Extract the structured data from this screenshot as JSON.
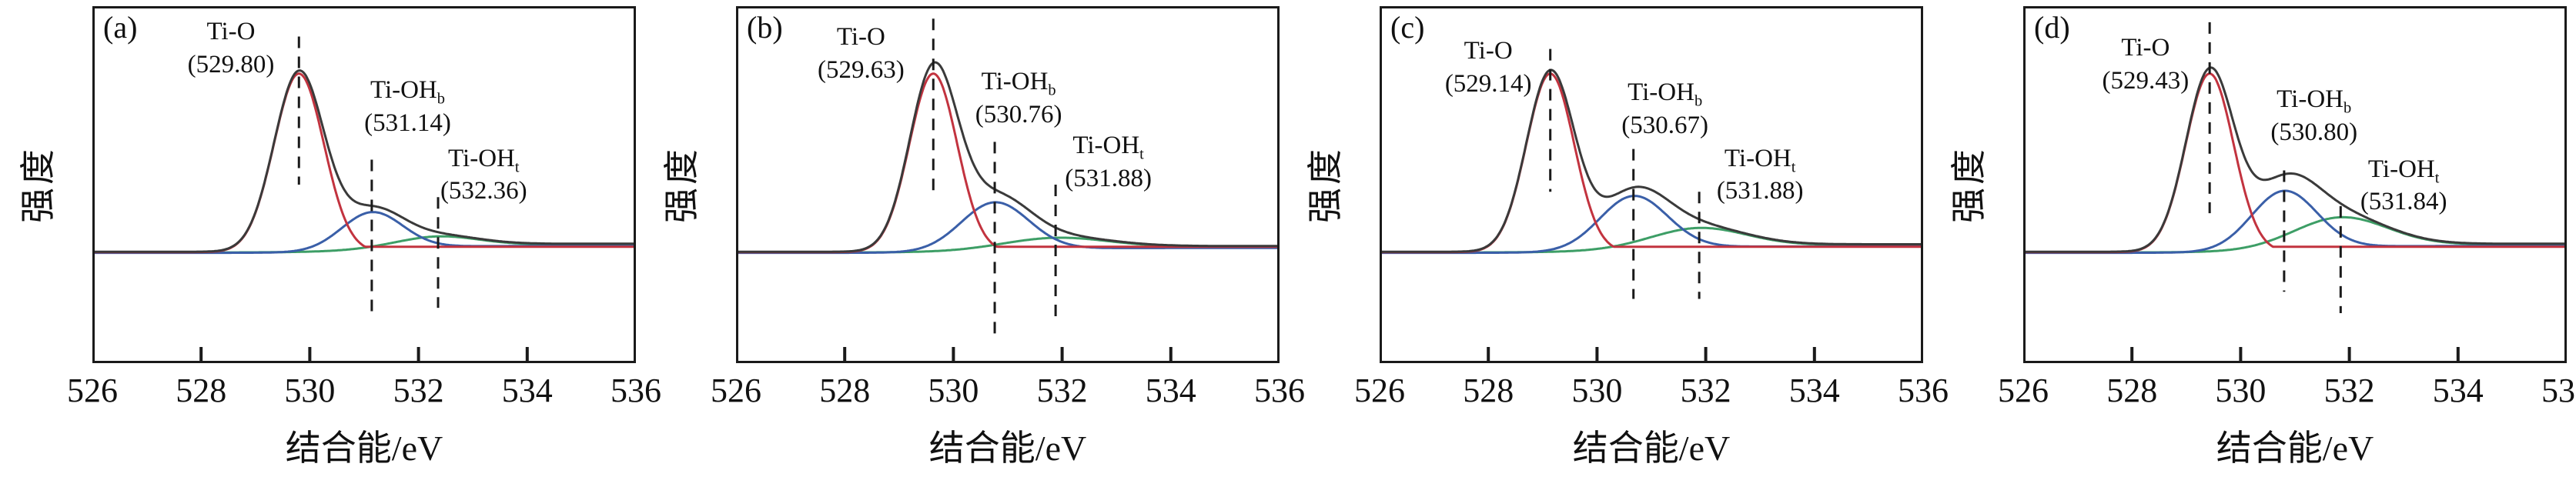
{
  "chart_data": {
    "type": "line",
    "xlabel": "结合能/eV",
    "ylabel": "强度",
    "x_range": [
      526,
      536
    ],
    "x_ticks": [
      526,
      528,
      530,
      532,
      534,
      536
    ],
    "grid": false,
    "legend_position": "none",
    "series_colors": {
      "envelope": "#3a3a3a",
      "ti_o": "#c2333f",
      "ti_oh_b": "#3a5fa8",
      "ti_oh_t": "#3d9e66"
    },
    "frame_color": "#1a1a1a",
    "fit_params": {
      "baseline_green": 0.01,
      "baseline_blue": 0.008,
      "baseline_red": 0.012,
      "baseline_black": 0.014,
      "ti_o_tail_level": 0.03
    },
    "panels": [
      {
        "label": "(a)",
        "background": {
          "right_level": 0.045,
          "center": 531.2,
          "width": 0.55
        },
        "peaks": [
          {
            "name": "Ti-O",
            "center": 529.8,
            "amp": 1.0,
            "sigma": 0.46,
            "series": "ti_o",
            "dash": [
              0.085,
              0.5
            ],
            "ann": {
              "base": "Ti-O",
              "sub": "",
              "value": "(529.80)",
              "x": 528.55,
              "y": 0.03
            }
          },
          {
            "name": "Ti-OHb",
            "center": 531.14,
            "amp": 0.21,
            "sigma": 0.56,
            "series": "ti_oh_b",
            "dash": [
              0.43,
              0.87
            ],
            "ann": {
              "base": "Ti-OH",
              "sub": "b",
              "value": "(531.14)",
              "x": 531.8,
              "y": 0.195
            }
          },
          {
            "name": "Ti-OHt",
            "center": 532.36,
            "amp": 0.05,
            "sigma": 0.72,
            "series": "ti_oh_t",
            "dash": [
              0.535,
              0.845
            ],
            "ann": {
              "base": "Ti-OH",
              "sub": "t",
              "value": "(532.36)",
              "x": 533.2,
              "y": 0.385
            }
          }
        ]
      },
      {
        "label": "(b)",
        "background": {
          "right_level": 0.032,
          "center": 530.8,
          "width": 0.6
        },
        "peaks": [
          {
            "name": "Ti-O",
            "center": 529.63,
            "amp": 1.0,
            "sigma": 0.44,
            "series": "ti_o",
            "dash": [
              0.035,
              0.52
            ],
            "ann": {
              "base": "Ti-O",
              "sub": "",
              "value": "(529.63)",
              "x": 528.3,
              "y": 0.045
            }
          },
          {
            "name": "Ti-OHb",
            "center": 530.76,
            "amp": 0.27,
            "sigma": 0.62,
            "series": "ti_oh_b",
            "dash": [
              0.38,
              0.92
            ],
            "ann": {
              "base": "Ti-OH",
              "sub": "b",
              "value": "(530.76)",
              "x": 531.2,
              "y": 0.17
            }
          },
          {
            "name": "Ti-OHt",
            "center": 531.88,
            "amp": 0.055,
            "sigma": 0.95,
            "series": "ti_oh_t",
            "dash": [
              0.5,
              0.88
            ],
            "ann": {
              "base": "Ti-OH",
              "sub": "t",
              "value": "(531.88)",
              "x": 532.85,
              "y": 0.35
            }
          }
        ]
      },
      {
        "label": "(c)",
        "background": {
          "right_level": 0.042,
          "center": 530.6,
          "width": 0.6
        },
        "peaks": [
          {
            "name": "Ti-O",
            "center": 529.14,
            "amp": 1.0,
            "sigma": 0.44,
            "series": "ti_o",
            "dash": [
              0.12,
              0.52
            ],
            "ann": {
              "base": "Ti-O",
              "sub": "",
              "value": "(529.14)",
              "x": 528.0,
              "y": 0.085
            }
          },
          {
            "name": "Ti-OHb",
            "center": 530.67,
            "amp": 0.3,
            "sigma": 0.62,
            "series": "ti_oh_b",
            "dash": [
              0.4,
              0.82
            ],
            "ann": {
              "base": "Ti-OH",
              "sub": "b",
              "value": "(530.67)",
              "x": 531.25,
              "y": 0.2
            }
          },
          {
            "name": "Ti-OHt",
            "center": 531.88,
            "amp": 0.1,
            "sigma": 0.85,
            "series": "ti_oh_t",
            "dash": [
              0.52,
              0.82
            ],
            "ann": {
              "base": "Ti-OH",
              "sub": "t",
              "value": "(531.88)",
              "x": 533.0,
              "y": 0.385
            }
          }
        ]
      },
      {
        "label": "(d)",
        "background": {
          "right_level": 0.045,
          "center": 530.9,
          "width": 0.6
        },
        "peaks": [
          {
            "name": "Ti-O",
            "center": 529.43,
            "amp": 1.0,
            "sigma": 0.44,
            "series": "ti_o",
            "dash": [
              0.045,
              0.58
            ],
            "ann": {
              "base": "Ti-O",
              "sub": "",
              "value": "(529.43)",
              "x": 528.25,
              "y": 0.075
            }
          },
          {
            "name": "Ti-OHb",
            "center": 530.8,
            "amp": 0.33,
            "sigma": 0.6,
            "series": "ti_oh_b",
            "dash": [
              0.46,
              0.8
            ],
            "ann": {
              "base": "Ti-OH",
              "sub": "b",
              "value": "(530.80)",
              "x": 531.35,
              "y": 0.22
            }
          },
          {
            "name": "Ti-OHt",
            "center": 531.84,
            "amp": 0.16,
            "sigma": 0.85,
            "series": "ti_oh_t",
            "dash": [
              0.56,
              0.86
            ],
            "ann": {
              "base": "Ti-OH",
              "sub": "t",
              "value": "(531.84)",
              "x": 533.0,
              "y": 0.415
            }
          }
        ]
      }
    ]
  }
}
